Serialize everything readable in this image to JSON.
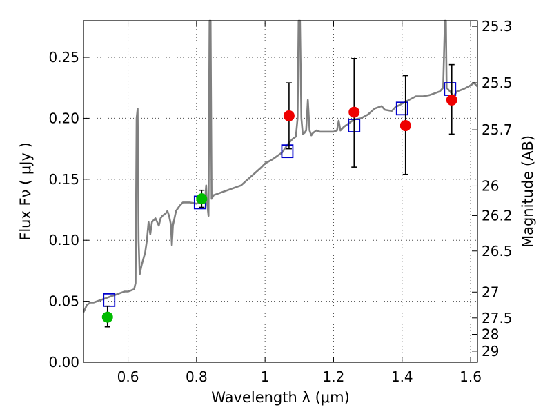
{
  "chart_data": {
    "type": "scatter",
    "title": "",
    "xlabel": "Wavelength  λ (μm)",
    "ylabel": "Flux  Fν  ( μJy )",
    "ylabel_right": "Magnitude (AB)",
    "xlim": [
      0.47,
      1.62
    ],
    "ylim": [
      0.0,
      0.28
    ],
    "grid": true,
    "x_ticks": [
      {
        "value": 0.6,
        "label": "0.6"
      },
      {
        "value": 0.8,
        "label": "0.8"
      },
      {
        "value": 1.0,
        "label": "1"
      },
      {
        "value": 1.2,
        "label": "1.2"
      },
      {
        "value": 1.4,
        "label": "1.4"
      },
      {
        "value": 1.6,
        "label": "1.6"
      }
    ],
    "y_ticks": [
      {
        "value": 0.0,
        "label": "0.00"
      },
      {
        "value": 0.05,
        "label": "0.05"
      },
      {
        "value": 0.1,
        "label": "0.10"
      },
      {
        "value": 0.15,
        "label": "0.15"
      },
      {
        "value": 0.2,
        "label": "0.20"
      },
      {
        "value": 0.25,
        "label": "0.25"
      }
    ],
    "right_ticks": [
      {
        "value": 25.3,
        "label": "25.3"
      },
      {
        "value": 25.5,
        "label": "25.5"
      },
      {
        "value": 25.7,
        "label": "25.7"
      },
      {
        "value": 26.0,
        "label": "26"
      },
      {
        "value": 26.2,
        "label": "26.2"
      },
      {
        "value": 26.5,
        "label": "26.5"
      },
      {
        "value": 27.0,
        "label": "27"
      },
      {
        "value": 27.5,
        "label": "27.5"
      },
      {
        "value": 28.0,
        "label": "28"
      },
      {
        "value": 29.0,
        "label": "29"
      }
    ],
    "series": [
      {
        "name": "model spectrum",
        "kind": "line",
        "color": "#808080",
        "points": [
          [
            0.47,
            0.041
          ],
          [
            0.475,
            0.044
          ],
          [
            0.48,
            0.047
          ],
          [
            0.49,
            0.049
          ],
          [
            0.5,
            0.049
          ],
          [
            0.51,
            0.05
          ],
          [
            0.52,
            0.051
          ],
          [
            0.53,
            0.052
          ],
          [
            0.54,
            0.053
          ],
          [
            0.55,
            0.054
          ],
          [
            0.56,
            0.055
          ],
          [
            0.57,
            0.056
          ],
          [
            0.58,
            0.057
          ],
          [
            0.59,
            0.058
          ],
          [
            0.6,
            0.058
          ],
          [
            0.61,
            0.059
          ],
          [
            0.618,
            0.06
          ],
          [
            0.622,
            0.065
          ],
          [
            0.625,
            0.2
          ],
          [
            0.628,
            0.208
          ],
          [
            0.631,
            0.1
          ],
          [
            0.634,
            0.072
          ],
          [
            0.64,
            0.08
          ],
          [
            0.65,
            0.09
          ],
          [
            0.655,
            0.1
          ],
          [
            0.66,
            0.115
          ],
          [
            0.665,
            0.105
          ],
          [
            0.67,
            0.115
          ],
          [
            0.68,
            0.118
          ],
          [
            0.69,
            0.112
          ],
          [
            0.695,
            0.118
          ],
          [
            0.7,
            0.12
          ],
          [
            0.71,
            0.122
          ],
          [
            0.715,
            0.124
          ],
          [
            0.72,
            0.12
          ],
          [
            0.725,
            0.113
          ],
          [
            0.728,
            0.096
          ],
          [
            0.731,
            0.112
          ],
          [
            0.74,
            0.124
          ],
          [
            0.75,
            0.128
          ],
          [
            0.76,
            0.131
          ],
          [
            0.78,
            0.131
          ],
          [
            0.8,
            0.13
          ],
          [
            0.81,
            0.131
          ],
          [
            0.82,
            0.132
          ],
          [
            0.825,
            0.134
          ],
          [
            0.828,
            0.145
          ],
          [
            0.83,
            0.133
          ],
          [
            0.835,
            0.12
          ],
          [
            0.838,
            0.28
          ],
          [
            0.841,
            0.28
          ],
          [
            0.844,
            0.134
          ],
          [
            0.85,
            0.137
          ],
          [
            0.87,
            0.139
          ],
          [
            0.9,
            0.142
          ],
          [
            0.93,
            0.145
          ],
          [
            0.95,
            0.15
          ],
          [
            0.97,
            0.155
          ],
          [
            0.99,
            0.16
          ],
          [
            1.0,
            0.163
          ],
          [
            1.02,
            0.166
          ],
          [
            1.03,
            0.168
          ],
          [
            1.04,
            0.17
          ],
          [
            1.05,
            0.172
          ],
          [
            1.06,
            0.176
          ],
          [
            1.07,
            0.18
          ],
          [
            1.08,
            0.183
          ],
          [
            1.09,
            0.185
          ],
          [
            1.095,
            0.2
          ],
          [
            1.098,
            0.28
          ],
          [
            1.102,
            0.28
          ],
          [
            1.106,
            0.2
          ],
          [
            1.11,
            0.187
          ],
          [
            1.115,
            0.188
          ],
          [
            1.12,
            0.19
          ],
          [
            1.125,
            0.215
          ],
          [
            1.13,
            0.19
          ],
          [
            1.135,
            0.186
          ],
          [
            1.14,
            0.188
          ],
          [
            1.15,
            0.19
          ],
          [
            1.16,
            0.189
          ],
          [
            1.18,
            0.189
          ],
          [
            1.2,
            0.189
          ],
          [
            1.21,
            0.19
          ],
          [
            1.215,
            0.198
          ],
          [
            1.22,
            0.19
          ],
          [
            1.23,
            0.193
          ],
          [
            1.24,
            0.195
          ],
          [
            1.25,
            0.197
          ],
          [
            1.26,
            0.199
          ],
          [
            1.28,
            0.2
          ],
          [
            1.3,
            0.203
          ],
          [
            1.32,
            0.208
          ],
          [
            1.34,
            0.21
          ],
          [
            1.35,
            0.207
          ],
          [
            1.37,
            0.206
          ],
          [
            1.38,
            0.209
          ],
          [
            1.4,
            0.212
          ],
          [
            1.42,
            0.215
          ],
          [
            1.44,
            0.218
          ],
          [
            1.46,
            0.218
          ],
          [
            1.48,
            0.219
          ],
          [
            1.5,
            0.221
          ],
          [
            1.51,
            0.222
          ],
          [
            1.52,
            0.225
          ],
          [
            1.525,
            0.28
          ],
          [
            1.528,
            0.28
          ],
          [
            1.53,
            0.225
          ],
          [
            1.54,
            0.222
          ],
          [
            1.55,
            0.218
          ],
          [
            1.56,
            0.222
          ],
          [
            1.58,
            0.224
          ],
          [
            1.6,
            0.227
          ],
          [
            1.61,
            0.229
          ],
          [
            1.62,
            0.226
          ]
        ]
      },
      {
        "name": "model photometry",
        "kind": "open-square",
        "color": "#0000cc",
        "points": [
          [
            0.545,
            0.051
          ],
          [
            0.81,
            0.131
          ],
          [
            1.065,
            0.173
          ],
          [
            1.26,
            0.194
          ],
          [
            1.4,
            0.208
          ],
          [
            1.54,
            0.224
          ]
        ]
      },
      {
        "name": "observed (green)",
        "kind": "filled-circle",
        "color": "#00bb00",
        "points": [
          {
            "x": 0.54,
            "y": 0.037,
            "err_lo": 0.029,
            "err_hi": 0.046
          },
          {
            "x": 0.815,
            "y": 0.134,
            "err_lo": 0.127,
            "err_hi": 0.141
          }
        ]
      },
      {
        "name": "observed (red)",
        "kind": "filled-circle",
        "color": "#ee0000",
        "points": [
          {
            "x": 1.07,
            "y": 0.202,
            "err_lo": 0.175,
            "err_hi": 0.229
          },
          {
            "x": 1.26,
            "y": 0.205,
            "err_lo": 0.16,
            "err_hi": 0.249
          },
          {
            "x": 1.41,
            "y": 0.194,
            "err_lo": 0.154,
            "err_hi": 0.235
          },
          {
            "x": 1.545,
            "y": 0.215,
            "err_lo": 0.187,
            "err_hi": 0.244
          }
        ]
      }
    ]
  }
}
